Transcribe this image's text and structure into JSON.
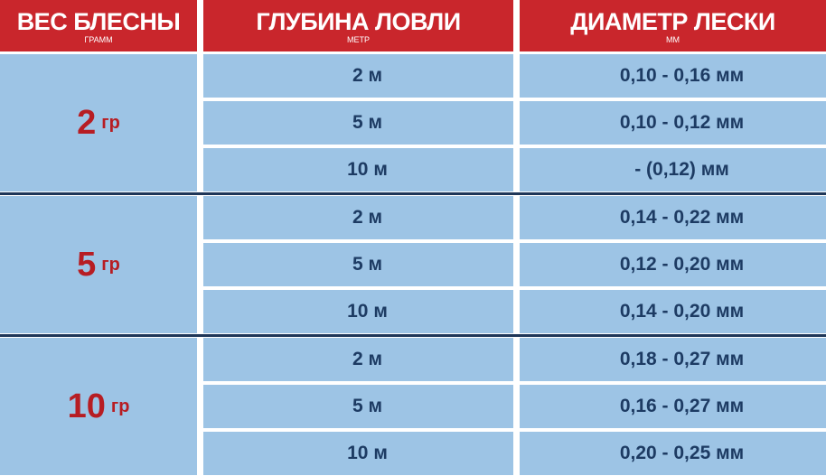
{
  "header": {
    "columns": [
      {
        "title": "ВЕС БЛЕСНЫ",
        "unit": "ГРАММ"
      },
      {
        "title": "ГЛУБИНА ЛОВЛИ",
        "unit": "МЕТР"
      },
      {
        "title": "ДИАМЕТР ЛЕСКИ",
        "unit": "ММ"
      }
    ]
  },
  "groups": [
    {
      "weight": "2",
      "unit": "гр",
      "rows": [
        {
          "depth": "2 м",
          "diameter": "0,10 - 0,16 мм"
        },
        {
          "depth": "5 м",
          "diameter": "0,10 - 0,12 мм"
        },
        {
          "depth": "10 м",
          "diameter": "- (0,12) мм"
        }
      ]
    },
    {
      "weight": "5",
      "unit": "гр",
      "rows": [
        {
          "depth": "2 м",
          "diameter": "0,14 - 0,22 мм"
        },
        {
          "depth": "5 м",
          "diameter": "0,12 - 0,20 мм"
        },
        {
          "depth": "10 м",
          "diameter": "0,14 - 0,20 мм"
        }
      ]
    },
    {
      "weight": "10",
      "unit": "гр",
      "rows": [
        {
          "depth": "2 м",
          "diameter": "0,18 - 0,27 мм"
        },
        {
          "depth": "5 м",
          "diameter": "0,16 - 0,27 мм"
        },
        {
          "depth": "10 м",
          "diameter": "0,20 - 0,25 мм"
        }
      ]
    }
  ]
}
